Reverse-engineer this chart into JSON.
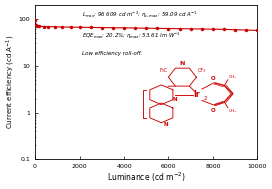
{
  "title": "",
  "xlabel": "Luminance (cd m$^{-2}$)",
  "ylabel": "Current efficiency (cd A$^{-1}$)",
  "line_color": "#cc0000",
  "marker_color": "#cc0000",
  "ylim_log": [
    0.1,
    200
  ],
  "xlim": [
    0,
    10000
  ],
  "xticks": [
    0,
    2000,
    4000,
    6000,
    8000,
    10000
  ],
  "background_color": "#ffffff",
  "x_data": [
    0,
    50,
    100,
    200,
    400,
    600,
    900,
    1200,
    1600,
    2000,
    2500,
    3000,
    3500,
    4000,
    4500,
    5000,
    5500,
    6000,
    6500,
    7000,
    7500,
    8000,
    8500,
    9000,
    9500,
    10000
  ],
  "y_data": [
    95,
    73,
    71,
    70,
    69,
    68.5,
    68,
    67.5,
    67,
    66.5,
    66,
    65.5,
    65,
    64.5,
    64,
    63.5,
    63,
    62.5,
    62,
    61.5,
    61,
    60.5,
    60,
    59,
    58,
    57
  ]
}
